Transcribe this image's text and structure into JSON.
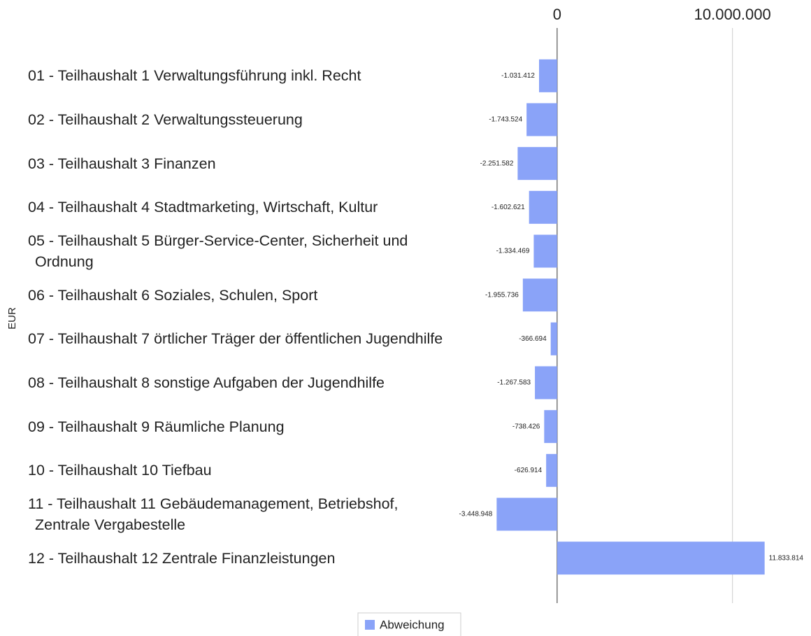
{
  "chart_data": {
    "type": "barh",
    "ylabel": "EUR",
    "categories": [
      "01 - Teilhaushalt 1 Verwaltungsführung inkl. Recht",
      "02 - Teilhaushalt 2 Verwaltungssteuerung",
      "03 - Teilhaushalt 3 Finanzen",
      "04 - Teilhaushalt 4 Stadtmarketing, Wirtschaft, Kultur",
      "05 - Teilhaushalt 5 Bürger-Service-Center, Sicherheit und Ordnung",
      "06 - Teilhaushalt 6 Soziales, Schulen, Sport",
      "07 - Teilhaushalt 7 örtlicher Träger der öffentlichen Jugendhilfe",
      "08 - Teilhaushalt 8 sonstige Aufgaben der Jugendhilfe",
      "09 - Teilhaushalt 9 Räumliche Planung",
      "10 - Teilhaushalt 10 Tiefbau",
      "11 - Teilhaushalt 11 Gebäudemanagement, Betriebshof, Zentrale Vergabestelle",
      "12 - Teilhaushalt 12 Zentrale Finanzleistungen"
    ],
    "series": [
      {
        "name": "Abweichung",
        "color": "#8aa3f8",
        "values": [
          -1031412,
          -1743524,
          -2251582,
          -1602621,
          -1334469,
          -1955736,
          -366694,
          -1267583,
          -738426,
          -626914,
          -3448948,
          11833814
        ],
        "value_labels": [
          "-1.031.412",
          "-1.743.524",
          "-2.251.582",
          "-1.602.621",
          "-1.334.469",
          "-1.955.736",
          "-366.694",
          "-1.267.583",
          "-738.426",
          "-626.914",
          "-3.448.948",
          "11.833.814"
        ]
      }
    ],
    "xlim": [
      -6000000,
      14000000
    ],
    "xticks": [
      0,
      {
        "value": 10000000,
        "label": "10.000.000"
      }
    ],
    "grid": true,
    "legend": "bottom"
  }
}
